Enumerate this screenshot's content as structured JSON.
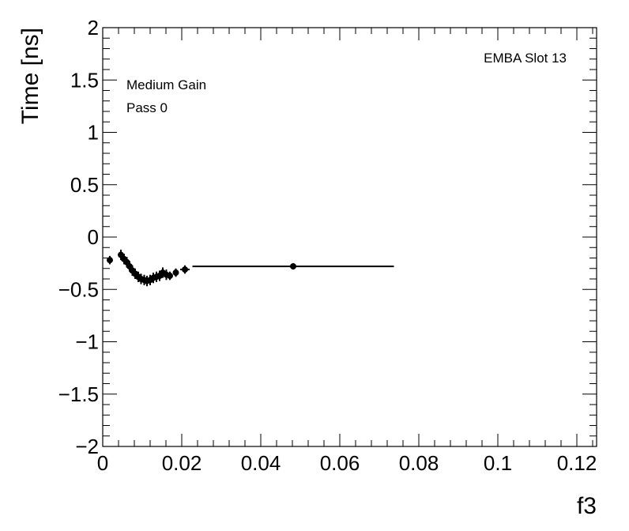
{
  "chart_data": {
    "type": "scatter",
    "xlabel": "f3",
    "ylabel": "Time [ns]",
    "xlim": [
      0,
      0.125
    ],
    "ylim": [
      -2,
      2
    ],
    "x_ticks": [
      0,
      0.02,
      0.04,
      0.06,
      0.08,
      0.1,
      0.12
    ],
    "x_tick_labels": [
      "0",
      "0.02",
      "0.04",
      "0.06",
      "0.08",
      "0.1",
      "0.12"
    ],
    "y_ticks": [
      -2,
      -1.5,
      -1,
      -0.5,
      0,
      0.5,
      1,
      1.5,
      2
    ],
    "y_tick_labels": [
      "−2",
      "−1.5",
      "−1",
      "−0.5",
      "0",
      "0.5",
      "1",
      "1.5",
      "2"
    ],
    "grid": false,
    "annotations": {
      "gain": "Medium Gain",
      "pass": "Pass 0",
      "module": "EMBA Slot 13"
    },
    "points": [
      {
        "x": 0.0018,
        "y": -0.22,
        "xerr": 0.0006,
        "yerr": 0.04
      },
      {
        "x": 0.0046,
        "y": -0.17,
        "xerr": 0.0004,
        "yerr": 0.05
      },
      {
        "x": 0.0054,
        "y": -0.21,
        "xerr": 0.0004,
        "yerr": 0.05
      },
      {
        "x": 0.0061,
        "y": -0.24,
        "xerr": 0.0004,
        "yerr": 0.05
      },
      {
        "x": 0.0068,
        "y": -0.28,
        "xerr": 0.0004,
        "yerr": 0.05
      },
      {
        "x": 0.0075,
        "y": -0.32,
        "xerr": 0.0004,
        "yerr": 0.05
      },
      {
        "x": 0.0082,
        "y": -0.35,
        "xerr": 0.0004,
        "yerr": 0.05
      },
      {
        "x": 0.009,
        "y": -0.38,
        "xerr": 0.0004,
        "yerr": 0.05
      },
      {
        "x": 0.0097,
        "y": -0.4,
        "xerr": 0.0004,
        "yerr": 0.05
      },
      {
        "x": 0.0105,
        "y": -0.41,
        "xerr": 0.0004,
        "yerr": 0.05
      },
      {
        "x": 0.0112,
        "y": -0.42,
        "xerr": 0.0004,
        "yerr": 0.05
      },
      {
        "x": 0.012,
        "y": -0.41,
        "xerr": 0.0004,
        "yerr": 0.05
      },
      {
        "x": 0.0128,
        "y": -0.39,
        "xerr": 0.0004,
        "yerr": 0.05
      },
      {
        "x": 0.0136,
        "y": -0.38,
        "xerr": 0.0004,
        "yerr": 0.05
      },
      {
        "x": 0.0144,
        "y": -0.37,
        "xerr": 0.0004,
        "yerr": 0.05
      },
      {
        "x": 0.0152,
        "y": -0.34,
        "xerr": 0.0004,
        "yerr": 0.05
      },
      {
        "x": 0.0161,
        "y": -0.36,
        "xerr": 0.0004,
        "yerr": 0.05
      },
      {
        "x": 0.017,
        "y": -0.37,
        "xerr": 0.0004,
        "yerr": 0.04
      },
      {
        "x": 0.0185,
        "y": -0.34,
        "xerr": 0.0007,
        "yerr": 0.04
      },
      {
        "x": 0.0208,
        "y": -0.31,
        "xerr": 0.0012,
        "yerr": 0.04
      },
      {
        "x": 0.0482,
        "y": -0.28,
        "xerr": 0.0255,
        "yerr": 0.03
      }
    ]
  }
}
